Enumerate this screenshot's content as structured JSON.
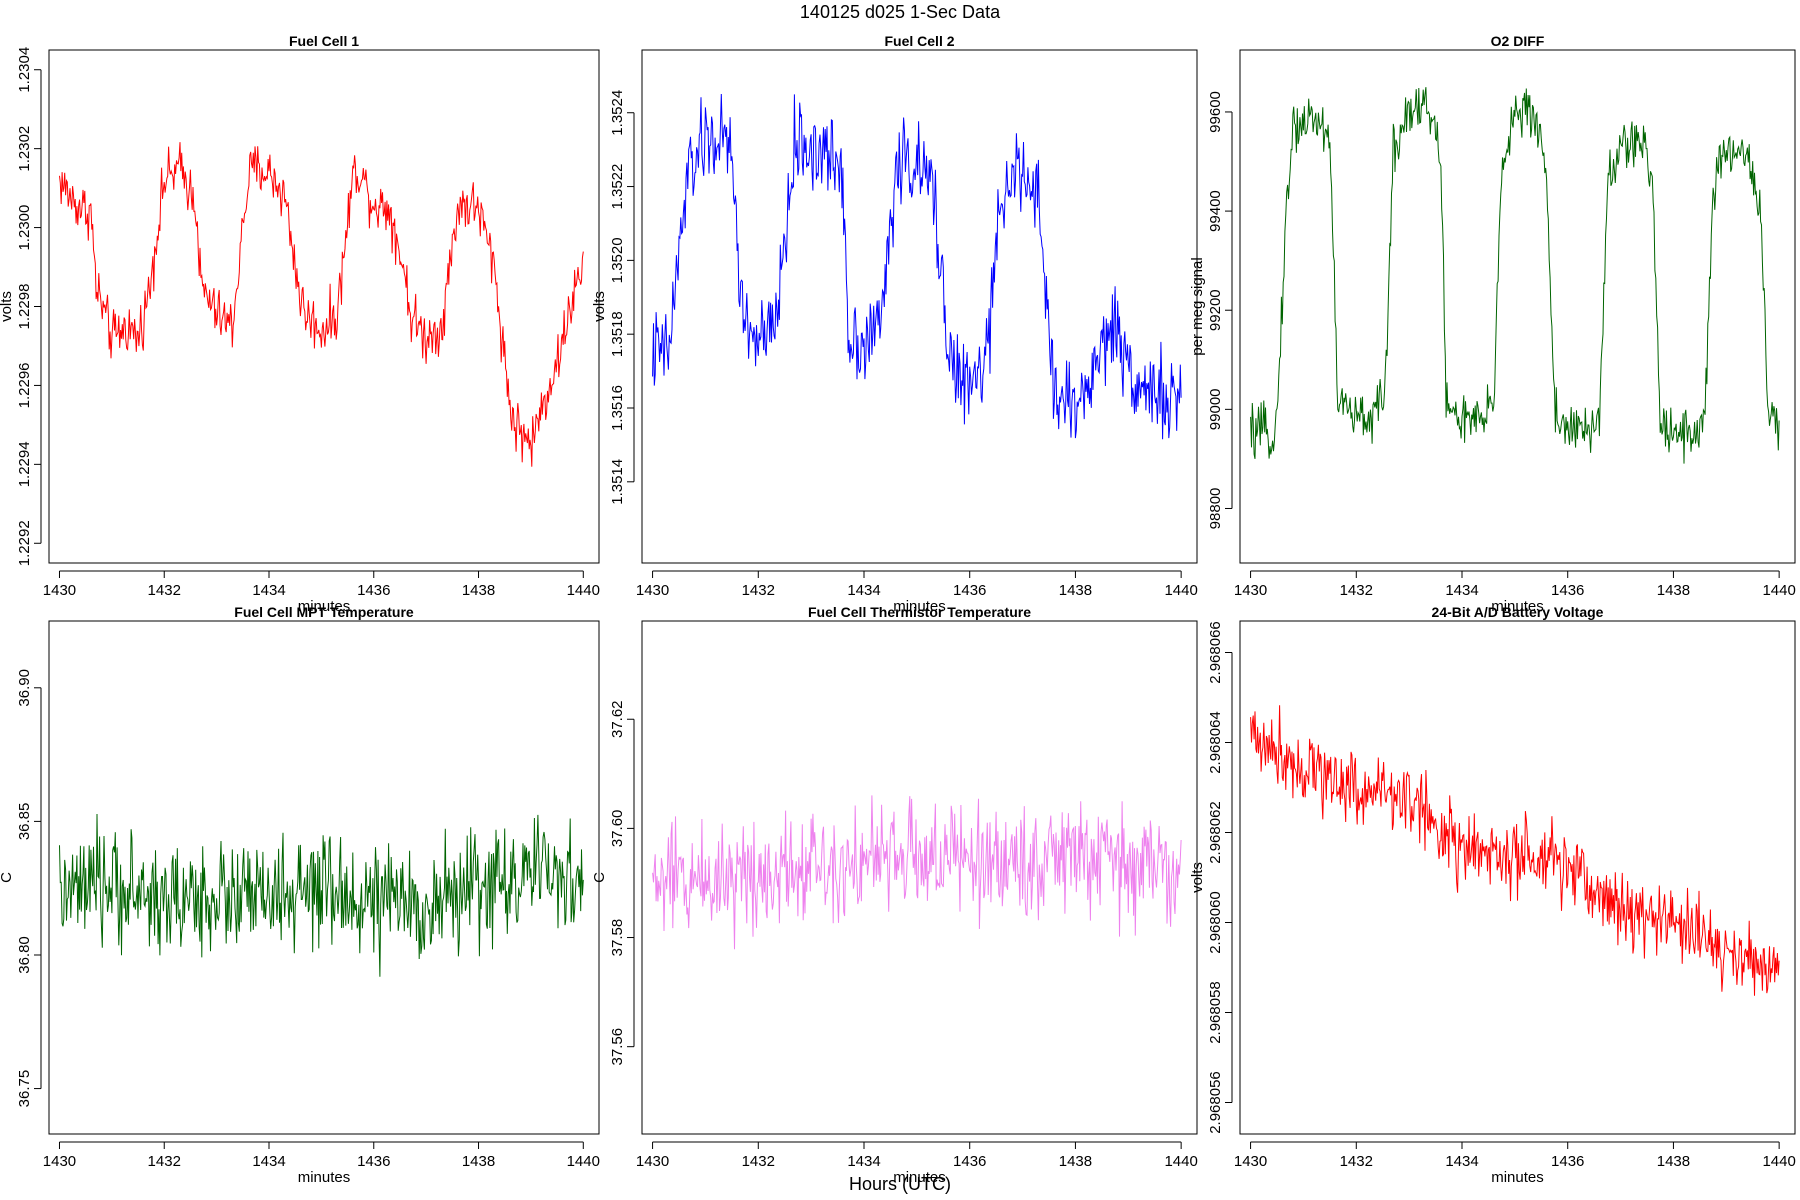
{
  "figure": {
    "title": "140125   d025   1-Sec Data",
    "xlabel": "Hours (UTC)"
  },
  "chart_data": [
    {
      "type": "line",
      "title": "Fuel Cell 1",
      "xlabel": "minutes",
      "ylabel": "volts",
      "color": "#ff0000",
      "xlim": [
        1429.8,
        1440.3
      ],
      "ylim": [
        1.22915,
        1.23045
      ],
      "xticks": [
        "1430",
        "1432",
        "1434",
        "1436",
        "1438",
        "1440"
      ],
      "yticks": [
        "1.2292",
        "1.2294",
        "1.2296",
        "1.2298",
        "1.2300",
        "1.2302",
        "1.2304"
      ],
      "x": [
        1430.0,
        1430.3,
        1430.6,
        1430.7,
        1431.0,
        1431.3,
        1431.5,
        1431.7,
        1432.0,
        1432.3,
        1432.6,
        1432.7,
        1433.0,
        1433.3,
        1433.6,
        1433.7,
        1434.0,
        1434.3,
        1434.6,
        1434.7,
        1435.0,
        1435.3,
        1435.6,
        1435.7,
        1436.0,
        1436.3,
        1436.6,
        1436.7,
        1437.0,
        1437.3,
        1437.6,
        1437.7,
        1438.0,
        1438.3,
        1438.6,
        1438.7,
        1439.0,
        1439.3,
        1439.6,
        1439.7,
        1440.0
      ],
      "y": [
        1.23012,
        1.23006,
        1.23004,
        1.22985,
        1.22972,
        1.22975,
        1.22972,
        1.22983,
        1.23012,
        1.23015,
        1.23007,
        1.22985,
        1.22978,
        1.22975,
        1.23012,
        1.23015,
        1.23014,
        1.23008,
        1.22982,
        1.22978,
        1.22974,
        1.22978,
        1.23013,
        1.23015,
        1.23006,
        1.23005,
        1.22988,
        1.22978,
        1.22972,
        1.22975,
        1.23005,
        1.23006,
        1.23005,
        1.2299,
        1.22955,
        1.2295,
        1.22945,
        1.22958,
        1.2297,
        1.22978,
        1.2299
      ],
      "noise": 7e-05
    },
    {
      "type": "line",
      "title": "Fuel Cell 2",
      "xlabel": "minutes",
      "ylabel": "volts",
      "color": "#0000ff",
      "xlim": [
        1429.8,
        1440.3
      ],
      "ylim": [
        1.35118,
        1.35257
      ],
      "xticks": [
        "1430",
        "1432",
        "1434",
        "1436",
        "1438",
        "1440"
      ],
      "yticks": [
        "1.3514",
        "1.3516",
        "1.3518",
        "1.3520",
        "1.3522",
        "1.3524"
      ],
      "x": [
        1430.0,
        1430.3,
        1430.6,
        1430.7,
        1431.0,
        1431.3,
        1431.5,
        1431.7,
        1432.0,
        1432.3,
        1432.6,
        1432.7,
        1433.0,
        1433.3,
        1433.6,
        1433.7,
        1434.0,
        1434.3,
        1434.6,
        1434.7,
        1435.0,
        1435.3,
        1435.6,
        1435.7,
        1436.0,
        1436.3,
        1436.6,
        1436.7,
        1437.0,
        1437.3,
        1437.6,
        1437.7,
        1438.0,
        1438.3,
        1438.6,
        1438.7,
        1439.0,
        1439.3,
        1439.6,
        1439.7,
        1440.0
      ],
      "y": [
        1.35175,
        1.35175,
        1.35215,
        1.35225,
        1.35232,
        1.35233,
        1.35228,
        1.35185,
        1.35178,
        1.3518,
        1.35218,
        1.35232,
        1.3523,
        1.35228,
        1.35225,
        1.3518,
        1.35178,
        1.35182,
        1.35222,
        1.35228,
        1.35225,
        1.3522,
        1.35178,
        1.3517,
        1.35165,
        1.35172,
        1.35215,
        1.35225,
        1.35222,
        1.35215,
        1.35165,
        1.35163,
        1.3516,
        1.35168,
        1.3518,
        1.35183,
        1.35172,
        1.35165,
        1.35165,
        1.3516,
        1.35162
      ],
      "noise": 0.00012
    },
    {
      "type": "line",
      "title": "O2 DIFF",
      "xlabel": "minutes",
      "ylabel": "per meg signal",
      "color": "#006400",
      "xlim": [
        1429.8,
        1440.3
      ],
      "ylim": [
        98690,
        99725
      ],
      "xticks": [
        "1430",
        "1432",
        "1434",
        "1436",
        "1438",
        "1440"
      ],
      "yticks": [
        "98800",
        "99000",
        "99200",
        "99400",
        "99600"
      ],
      "x": [
        1430.0,
        1430.4,
        1430.5,
        1430.65,
        1430.8,
        1431.2,
        1431.5,
        1431.65,
        1432.0,
        1432.4,
        1432.55,
        1432.7,
        1433.0,
        1433.3,
        1433.6,
        1433.7,
        1434.0,
        1434.4,
        1434.6,
        1434.75,
        1435.0,
        1435.4,
        1435.6,
        1435.75,
        1436.0,
        1436.4,
        1436.6,
        1436.75,
        1437.0,
        1437.4,
        1437.6,
        1437.75,
        1438.0,
        1438.4,
        1438.6,
        1438.75,
        1439.0,
        1439.4,
        1439.65,
        1439.8,
        1440.0
      ],
      "y": [
        98950,
        98950,
        98980,
        99350,
        99570,
        99590,
        99550,
        99020,
        98980,
        98990,
        99050,
        99520,
        99610,
        99620,
        99520,
        99010,
        98980,
        98970,
        99020,
        99490,
        99600,
        99590,
        99480,
        99000,
        98960,
        98950,
        98990,
        99440,
        99530,
        99540,
        99460,
        98980,
        98960,
        98950,
        98990,
        99440,
        99520,
        99520,
        99400,
        98990,
        98950
      ],
      "noise": 55
    },
    {
      "type": "line",
      "title": "Fuel Cell MPT Temperature",
      "xlabel": "minutes",
      "ylabel": "C",
      "color": "#006400",
      "xlim": [
        1429.8,
        1440.3
      ],
      "ylim": [
        36.733,
        36.925
      ],
      "xticks": [
        "1430",
        "1432",
        "1434",
        "1436",
        "1438",
        "1440"
      ],
      "yticks": [
        "36.75",
        "36.80",
        "36.85",
        "36.90"
      ],
      "x": [
        1430.0,
        1431.0,
        1432.0,
        1433.0,
        1434.0,
        1435.0,
        1436.0,
        1437.0,
        1438.0,
        1439.0,
        1440.0
      ],
      "y": [
        36.822,
        36.826,
        36.82,
        36.822,
        36.821,
        36.823,
        36.82,
        36.818,
        36.826,
        36.83,
        36.828
      ],
      "noise": 0.022
    },
    {
      "type": "line",
      "title": "Fuel Cell Thermistor Temperature",
      "xlabel": "minutes",
      "ylabel": "C",
      "color": "#ee82ee",
      "xlim": [
        1429.8,
        1440.3
      ],
      "ylim": [
        37.544,
        37.638
      ],
      "xticks": [
        "1430",
        "1432",
        "1434",
        "1436",
        "1438",
        "1440"
      ],
      "yticks": [
        "37.56",
        "37.58",
        "37.60",
        "37.62"
      ],
      "x": [
        1430.0,
        1431.0,
        1432.0,
        1433.0,
        1434.0,
        1435.0,
        1436.0,
        1437.0,
        1438.0,
        1439.0,
        1440.0
      ],
      "y": [
        37.59,
        37.591,
        37.592,
        37.594,
        37.594,
        37.595,
        37.594,
        37.594,
        37.595,
        37.593,
        37.593
      ],
      "noise": 0.011
    },
    {
      "type": "line",
      "title": "24-Bit A/D Battery Voltage",
      "xlabel": "minutes",
      "ylabel": "volts",
      "color": "#ff0000",
      "xlim": [
        1429.8,
        1440.3
      ],
      "ylim": [
        2.9680553,
        2.9680667
      ],
      "xticks": [
        "1430",
        "1432",
        "1434",
        "1436",
        "1438",
        "1440"
      ],
      "yticks": [
        "2.968056",
        "2.968058",
        "2.968060",
        "2.968062",
        "2.968064",
        "2.968066"
      ],
      "x": [
        1430.0,
        1431.0,
        1432.0,
        1433.0,
        1434.0,
        1435.0,
        1436.0,
        1437.0,
        1438.0,
        1439.0,
        1439.5,
        1440.0
      ],
      "y": [
        2.9680642,
        2.9680635,
        2.968063,
        2.9680628,
        2.9680616,
        2.9680614,
        2.9680612,
        2.9680603,
        2.96806,
        2.9680594,
        2.968059,
        2.9680592
      ],
      "noise": 9e-07
    }
  ]
}
